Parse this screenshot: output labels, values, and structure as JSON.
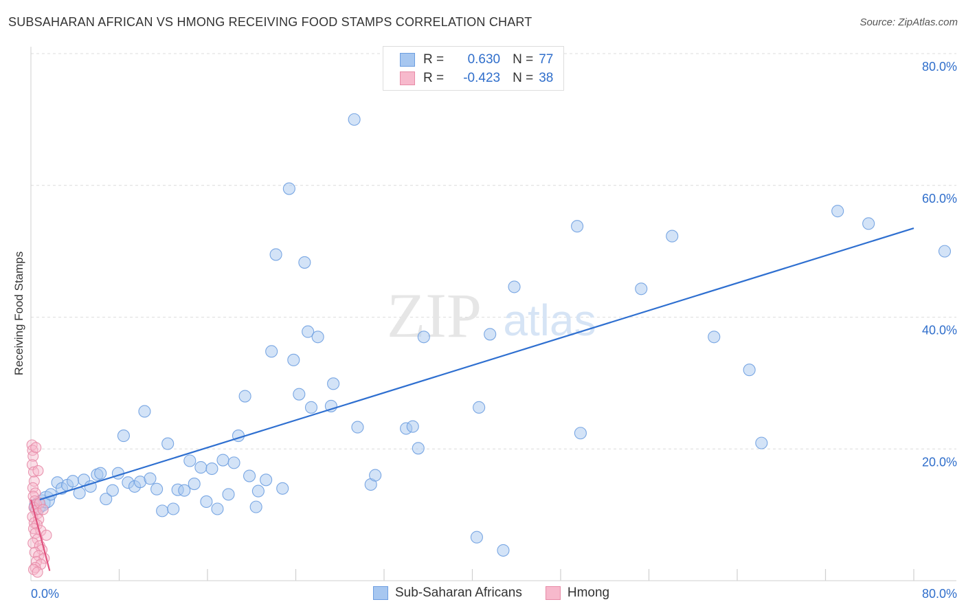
{
  "header": {
    "title": "SUBSAHARAN AFRICAN VS HMONG RECEIVING FOOD STAMPS CORRELATION CHART",
    "source": "Source: ZipAtlas.com"
  },
  "watermark": {
    "zip": "ZIP",
    "atlas": "atlas"
  },
  "legend": {
    "r_label": "R =",
    "n_label": "N =",
    "rows": [
      {
        "r": "0.630",
        "n": "77",
        "color": "#a7c7f0",
        "border": "#6b9de0"
      },
      {
        "r": "-0.423",
        "n": "38",
        "color": "#f7b9cc",
        "border": "#e78aa6"
      }
    ]
  },
  "bottom_legend": {
    "items": [
      {
        "label": "Sub-Saharan Africans",
        "color": "#a7c7f0",
        "border": "#6b9de0"
      },
      {
        "label": "Hmong",
        "color": "#f7b9cc",
        "border": "#e78aa6"
      }
    ]
  },
  "chart_data": {
    "type": "scatter",
    "title": "SUBSAHARAN AFRICAN VS HMONG RECEIVING FOOD STAMPS CORRELATION CHART",
    "xlabel": "",
    "ylabel": "Receiving Food Stamps",
    "xlim": [
      0,
      80
    ],
    "ylim": [
      0,
      80
    ],
    "x_tick_labels": [
      "0.0%",
      "80.0%"
    ],
    "y_tick_labels": [
      "20.0%",
      "40.0%",
      "60.0%",
      "80.0%"
    ],
    "y_ticks": [
      20,
      40,
      60,
      80
    ],
    "x_minor_ticks": [
      8,
      16,
      24,
      32,
      40,
      48,
      56,
      64,
      72,
      80
    ],
    "grid": true,
    "series": [
      {
        "name": "Sub-Saharan Africans",
        "color": "#6b9de0",
        "fill": "#a7c7f0",
        "trend": {
          "x": [
            0.8,
            80
          ],
          "y": [
            12.3,
            53.5
          ],
          "color": "#2e6fd0"
        },
        "points": [
          [
            0.6,
            11.3
          ],
          [
            1.0,
            11.8
          ],
          [
            1.4,
            12.3
          ],
          [
            1.8,
            13.1
          ],
          [
            2.4,
            14.9
          ],
          [
            2.8,
            14.0
          ],
          [
            3.3,
            14.5
          ],
          [
            3.8,
            15.1
          ],
          [
            4.4,
            13.3
          ],
          [
            4.8,
            15.3
          ],
          [
            5.4,
            14.3
          ],
          [
            6.0,
            16.1
          ],
          [
            6.3,
            16.3
          ],
          [
            6.8,
            12.4
          ],
          [
            7.4,
            13.7
          ],
          [
            7.9,
            16.3
          ],
          [
            8.4,
            22.0
          ],
          [
            8.8,
            14.9
          ],
          [
            9.4,
            14.3
          ],
          [
            9.9,
            15.0
          ],
          [
            10.3,
            25.7
          ],
          [
            10.8,
            15.5
          ],
          [
            11.4,
            13.9
          ],
          [
            11.9,
            10.6
          ],
          [
            12.4,
            20.8
          ],
          [
            12.9,
            10.9
          ],
          [
            13.3,
            13.8
          ],
          [
            13.9,
            13.7
          ],
          [
            14.4,
            18.2
          ],
          [
            14.8,
            14.7
          ],
          [
            15.4,
            17.2
          ],
          [
            15.9,
            12.0
          ],
          [
            16.4,
            17.0
          ],
          [
            16.9,
            10.9
          ],
          [
            17.4,
            18.3
          ],
          [
            17.9,
            13.1
          ],
          [
            18.4,
            17.9
          ],
          [
            18.8,
            22.0
          ],
          [
            19.4,
            28.0
          ],
          [
            19.8,
            15.9
          ],
          [
            20.4,
            11.2
          ],
          [
            20.6,
            13.6
          ],
          [
            21.3,
            15.3
          ],
          [
            21.8,
            34.8
          ],
          [
            22.2,
            49.5
          ],
          [
            22.8,
            14.0
          ],
          [
            23.4,
            59.5
          ],
          [
            23.8,
            33.5
          ],
          [
            24.3,
            28.3
          ],
          [
            24.8,
            48.3
          ],
          [
            25.1,
            37.8
          ],
          [
            25.4,
            26.3
          ],
          [
            26.0,
            37.0
          ],
          [
            27.2,
            26.5
          ],
          [
            27.4,
            29.9
          ],
          [
            29.3,
            70.0
          ],
          [
            29.6,
            23.3
          ],
          [
            30.8,
            14.6
          ],
          [
            31.2,
            16.0
          ],
          [
            34.0,
            23.1
          ],
          [
            34.6,
            23.4
          ],
          [
            35.1,
            20.1
          ],
          [
            35.6,
            37.0
          ],
          [
            40.4,
            6.6
          ],
          [
            40.6,
            26.3
          ],
          [
            41.6,
            37.4
          ],
          [
            42.8,
            4.6
          ],
          [
            43.8,
            44.6
          ],
          [
            49.5,
            53.8
          ],
          [
            49.8,
            22.4
          ],
          [
            55.3,
            44.3
          ],
          [
            58.1,
            52.3
          ],
          [
            61.9,
            37.0
          ],
          [
            65.1,
            32.0
          ],
          [
            66.2,
            20.9
          ],
          [
            73.1,
            56.1
          ],
          [
            75.9,
            54.2
          ],
          [
            82.8,
            50.0
          ]
        ]
      },
      {
        "name": "Hmong",
        "color": "#e78aa6",
        "fill": "#f7b9cc",
        "trend": {
          "x": [
            0.0,
            1.7
          ],
          "y": [
            12.3,
            1.5
          ],
          "color": "#e0527e"
        },
        "points": [
          [
            0.1,
            20.6
          ],
          [
            0.15,
            19.8
          ],
          [
            0.2,
            18.9
          ],
          [
            0.12,
            17.6
          ],
          [
            0.25,
            16.5
          ],
          [
            0.3,
            15.1
          ],
          [
            0.18,
            14.1
          ],
          [
            0.4,
            13.3
          ],
          [
            0.22,
            12.8
          ],
          [
            0.35,
            12.1
          ],
          [
            0.5,
            11.6
          ],
          [
            0.28,
            11.1
          ],
          [
            0.45,
            10.7
          ],
          [
            0.6,
            10.2
          ],
          [
            0.15,
            9.7
          ],
          [
            0.7,
            9.3
          ],
          [
            0.3,
            8.8
          ],
          [
            0.55,
            8.5
          ],
          [
            0.25,
            7.9
          ],
          [
            0.9,
            7.6
          ],
          [
            0.4,
            7.2
          ],
          [
            1.4,
            6.9
          ],
          [
            0.6,
            6.3
          ],
          [
            0.2,
            5.7
          ],
          [
            0.8,
            5.3
          ],
          [
            1.0,
            4.7
          ],
          [
            0.35,
            4.3
          ],
          [
            0.7,
            3.8
          ],
          [
            1.2,
            3.4
          ],
          [
            0.5,
            2.9
          ],
          [
            0.9,
            2.5
          ],
          [
            0.4,
            2.0
          ],
          [
            0.25,
            1.7
          ],
          [
            0.6,
            1.3
          ],
          [
            0.8,
            11.8
          ],
          [
            0.45,
            20.2
          ],
          [
            0.65,
            16.7
          ],
          [
            1.1,
            10.8
          ]
        ]
      }
    ]
  }
}
